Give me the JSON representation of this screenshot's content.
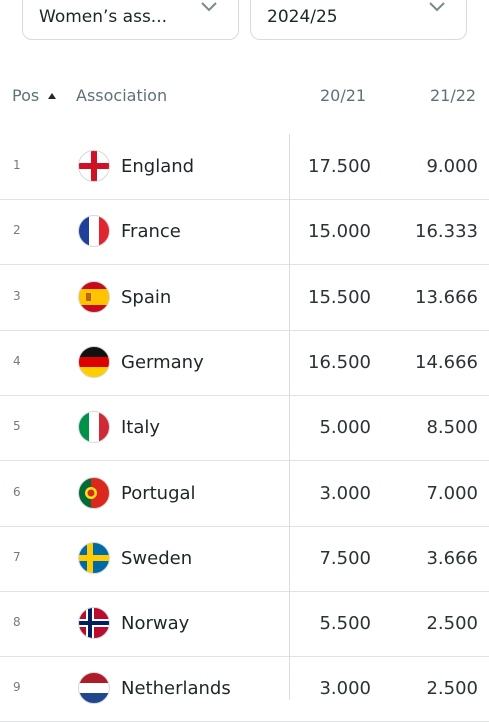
{
  "filters": {
    "association_type": "Women’s ass...",
    "season": "2024/25"
  },
  "columns": {
    "pos": "Pos",
    "association": "Association",
    "col1": "20/21",
    "col2": "21/22"
  },
  "rows": [
    {
      "pos": "1",
      "name": "England",
      "flag": "england-flag-icon",
      "c1": "17.500",
      "c2": "9.000"
    },
    {
      "pos": "2",
      "name": "France",
      "flag": "france-flag-icon",
      "c1": "15.000",
      "c2": "16.333"
    },
    {
      "pos": "3",
      "name": "Spain",
      "flag": "spain-flag-icon",
      "c1": "15.500",
      "c2": "13.666"
    },
    {
      "pos": "4",
      "name": "Germany",
      "flag": "germany-flag-icon",
      "c1": "16.500",
      "c2": "14.666"
    },
    {
      "pos": "5",
      "name": "Italy",
      "flag": "italy-flag-icon",
      "c1": "5.000",
      "c2": "8.500"
    },
    {
      "pos": "6",
      "name": "Portugal",
      "flag": "portugal-flag-icon",
      "c1": "3.000",
      "c2": "7.000"
    },
    {
      "pos": "7",
      "name": "Sweden",
      "flag": "sweden-flag-icon",
      "c1": "7.500",
      "c2": "3.666"
    },
    {
      "pos": "8",
      "name": "Norway",
      "flag": "norway-flag-icon",
      "c1": "5.500",
      "c2": "2.500"
    },
    {
      "pos": "9",
      "name": "Netherlands",
      "flag": "netherlands-flag-icon",
      "c1": "3.000",
      "c2": "2.500"
    }
  ]
}
